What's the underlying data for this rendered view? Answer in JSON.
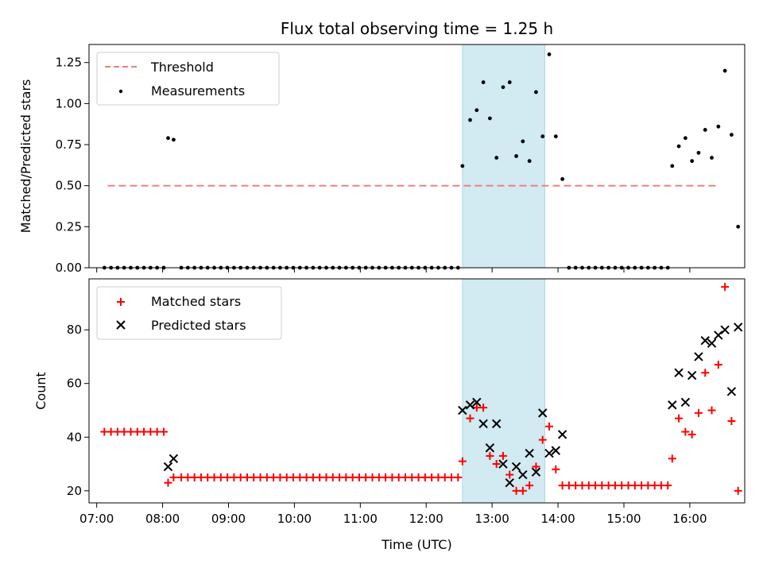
{
  "chart_data": [
    {
      "type": "scatter",
      "title": "Flux total observing time = 1.25 h",
      "xlabel": "",
      "ylabel": "Matched/Predicted stars",
      "xlim": [
        "06:53",
        "16:50"
      ],
      "ylim": [
        0,
        1.36
      ],
      "yticks": [
        "0.00",
        "0.25",
        "0.50",
        "0.75",
        "1.00",
        "1.25"
      ],
      "grid": false,
      "legend": "top-left",
      "highlight_span": [
        "12:33",
        "13:48"
      ],
      "highlight_color": "#add8e6",
      "threshold": {
        "name": "Threshold",
        "y": 0.5,
        "x_start": "07:10",
        "x_end": "16:25",
        "color": "#f08080"
      },
      "series": [
        {
          "name": "Measurements",
          "color": "#000000",
          "points": [
            [
              "07:07",
              0
            ],
            [
              "07:13",
              0
            ],
            [
              "07:19",
              0
            ],
            [
              "07:25",
              0
            ],
            [
              "07:31",
              0
            ],
            [
              "07:37",
              0
            ],
            [
              "07:43",
              0
            ],
            [
              "07:49",
              0
            ],
            [
              "07:55",
              0
            ],
            [
              "08:01",
              0
            ],
            [
              "08:05",
              0.79
            ],
            [
              "08:10",
              0.78
            ],
            [
              "08:17",
              0
            ],
            [
              "08:23",
              0
            ],
            [
              "08:29",
              0
            ],
            [
              "08:35",
              0
            ],
            [
              "08:41",
              0
            ],
            [
              "08:47",
              0
            ],
            [
              "08:53",
              0
            ],
            [
              "08:59",
              0
            ],
            [
              "09:05",
              0
            ],
            [
              "09:11",
              0
            ],
            [
              "09:17",
              0
            ],
            [
              "09:23",
              0
            ],
            [
              "09:29",
              0
            ],
            [
              "09:35",
              0
            ],
            [
              "09:41",
              0
            ],
            [
              "09:47",
              0
            ],
            [
              "09:53",
              0
            ],
            [
              "09:59",
              0
            ],
            [
              "10:05",
              0
            ],
            [
              "10:11",
              0
            ],
            [
              "10:17",
              0
            ],
            [
              "10:23",
              0
            ],
            [
              "10:29",
              0
            ],
            [
              "10:35",
              0
            ],
            [
              "10:41",
              0
            ],
            [
              "10:47",
              0
            ],
            [
              "10:53",
              0
            ],
            [
              "10:59",
              0
            ],
            [
              "11:05",
              0
            ],
            [
              "11:11",
              0
            ],
            [
              "11:17",
              0
            ],
            [
              "11:23",
              0
            ],
            [
              "11:29",
              0
            ],
            [
              "11:35",
              0
            ],
            [
              "11:41",
              0
            ],
            [
              "11:47",
              0
            ],
            [
              "11:53",
              0
            ],
            [
              "11:59",
              0
            ],
            [
              "12:05",
              0
            ],
            [
              "12:11",
              0
            ],
            [
              "12:17",
              0
            ],
            [
              "12:23",
              0
            ],
            [
              "12:29",
              0
            ],
            [
              "12:33",
              0.62
            ],
            [
              "12:40",
              0.9
            ],
            [
              "12:46",
              0.96
            ],
            [
              "12:52",
              1.13
            ],
            [
              "12:58",
              0.91
            ],
            [
              "13:04",
              0.67
            ],
            [
              "13:10",
              1.1
            ],
            [
              "13:16",
              1.13
            ],
            [
              "13:22",
              0.68
            ],
            [
              "13:28",
              0.77
            ],
            [
              "13:34",
              0.65
            ],
            [
              "13:40",
              1.07
            ],
            [
              "13:46",
              0.8
            ],
            [
              "13:52",
              1.3
            ],
            [
              "13:58",
              0.8
            ],
            [
              "14:04",
              0.54
            ],
            [
              "14:10",
              0
            ],
            [
              "14:16",
              0
            ],
            [
              "14:22",
              0
            ],
            [
              "14:28",
              0
            ],
            [
              "14:34",
              0
            ],
            [
              "14:40",
              0
            ],
            [
              "14:46",
              0
            ],
            [
              "14:52",
              0
            ],
            [
              "14:58",
              0
            ],
            [
              "15:04",
              0
            ],
            [
              "15:10",
              0
            ],
            [
              "15:16",
              0
            ],
            [
              "15:22",
              0
            ],
            [
              "15:28",
              0
            ],
            [
              "15:34",
              0
            ],
            [
              "15:40",
              0
            ],
            [
              "15:44",
              0.62
            ],
            [
              "15:50",
              0.74
            ],
            [
              "15:56",
              0.79
            ],
            [
              "16:02",
              0.65
            ],
            [
              "16:08",
              0.7
            ],
            [
              "16:14",
              0.84
            ],
            [
              "16:20",
              0.67
            ],
            [
              "16:26",
              0.86
            ],
            [
              "16:32",
              1.2
            ],
            [
              "16:38",
              0.81
            ],
            [
              "16:44",
              0.25
            ]
          ]
        }
      ]
    },
    {
      "type": "scatter",
      "title": "",
      "xlabel": "Time (UTC)",
      "ylabel": "Count",
      "xlim": [
        "06:53",
        "16:50"
      ],
      "ylim": [
        15.5,
        99
      ],
      "yticks": [
        "20",
        "40",
        "60",
        "80"
      ],
      "xticks": [
        "07:00",
        "08:00",
        "09:00",
        "10:00",
        "11:00",
        "12:00",
        "13:00",
        "14:00",
        "15:00",
        "16:00"
      ],
      "grid": false,
      "legend": "top-left",
      "highlight_span": [
        "12:33",
        "13:48"
      ],
      "highlight_color": "#add8e6",
      "series": [
        {
          "name": "Matched stars",
          "marker": "plus",
          "color": "#ff0000",
          "points": [
            [
              "07:07",
              42
            ],
            [
              "07:13",
              42
            ],
            [
              "07:19",
              42
            ],
            [
              "07:25",
              42
            ],
            [
              "07:31",
              42
            ],
            [
              "07:37",
              42
            ],
            [
              "07:43",
              42
            ],
            [
              "07:49",
              42
            ],
            [
              "07:55",
              42
            ],
            [
              "08:01",
              42
            ],
            [
              "08:05",
              23
            ],
            [
              "08:10",
              25
            ],
            [
              "08:17",
              25
            ],
            [
              "08:23",
              25
            ],
            [
              "08:29",
              25
            ],
            [
              "08:35",
              25
            ],
            [
              "08:41",
              25
            ],
            [
              "08:47",
              25
            ],
            [
              "08:53",
              25
            ],
            [
              "08:59",
              25
            ],
            [
              "09:05",
              25
            ],
            [
              "09:11",
              25
            ],
            [
              "09:17",
              25
            ],
            [
              "09:23",
              25
            ],
            [
              "09:29",
              25
            ],
            [
              "09:35",
              25
            ],
            [
              "09:41",
              25
            ],
            [
              "09:47",
              25
            ],
            [
              "09:53",
              25
            ],
            [
              "09:59",
              25
            ],
            [
              "10:05",
              25
            ],
            [
              "10:11",
              25
            ],
            [
              "10:17",
              25
            ],
            [
              "10:23",
              25
            ],
            [
              "10:29",
              25
            ],
            [
              "10:35",
              25
            ],
            [
              "10:41",
              25
            ],
            [
              "10:47",
              25
            ],
            [
              "10:53",
              25
            ],
            [
              "10:59",
              25
            ],
            [
              "11:05",
              25
            ],
            [
              "11:11",
              25
            ],
            [
              "11:17",
              25
            ],
            [
              "11:23",
              25
            ],
            [
              "11:29",
              25
            ],
            [
              "11:35",
              25
            ],
            [
              "11:41",
              25
            ],
            [
              "11:47",
              25
            ],
            [
              "11:53",
              25
            ],
            [
              "11:59",
              25
            ],
            [
              "12:05",
              25
            ],
            [
              "12:11",
              25
            ],
            [
              "12:17",
              25
            ],
            [
              "12:23",
              25
            ],
            [
              "12:29",
              25
            ],
            [
              "12:33",
              31
            ],
            [
              "12:40",
              47
            ],
            [
              "12:46",
              51
            ],
            [
              "12:52",
              51
            ],
            [
              "12:58",
              33
            ],
            [
              "13:04",
              30
            ],
            [
              "13:10",
              33
            ],
            [
              "13:16",
              26
            ],
            [
              "13:22",
              20
            ],
            [
              "13:28",
              20
            ],
            [
              "13:34",
              22
            ],
            [
              "13:40",
              29
            ],
            [
              "13:46",
              39
            ],
            [
              "13:52",
              44
            ],
            [
              "13:58",
              28
            ],
            [
              "14:04",
              22
            ],
            [
              "14:10",
              22
            ],
            [
              "14:16",
              22
            ],
            [
              "14:22",
              22
            ],
            [
              "14:28",
              22
            ],
            [
              "14:34",
              22
            ],
            [
              "14:40",
              22
            ],
            [
              "14:46",
              22
            ],
            [
              "14:52",
              22
            ],
            [
              "14:58",
              22
            ],
            [
              "15:04",
              22
            ],
            [
              "15:10",
              22
            ],
            [
              "15:16",
              22
            ],
            [
              "15:22",
              22
            ],
            [
              "15:28",
              22
            ],
            [
              "15:34",
              22
            ],
            [
              "15:40",
              22
            ],
            [
              "15:44",
              32
            ],
            [
              "15:50",
              47
            ],
            [
              "15:56",
              42
            ],
            [
              "16:02",
              41
            ],
            [
              "16:08",
              49
            ],
            [
              "16:14",
              64
            ],
            [
              "16:20",
              50
            ],
            [
              "16:26",
              67
            ],
            [
              "16:32",
              96
            ],
            [
              "16:38",
              46
            ],
            [
              "16:44",
              20
            ]
          ]
        },
        {
          "name": "Predicted stars",
          "marker": "x",
          "color": "#000000",
          "points": [
            [
              "08:05",
              29
            ],
            [
              "08:10",
              32
            ],
            [
              "12:33",
              50
            ],
            [
              "12:40",
              52
            ],
            [
              "12:46",
              53
            ],
            [
              "12:52",
              45
            ],
            [
              "12:58",
              36
            ],
            [
              "13:04",
              45
            ],
            [
              "13:10",
              30
            ],
            [
              "13:16",
              23
            ],
            [
              "13:22",
              29
            ],
            [
              "13:28",
              26
            ],
            [
              "13:34",
              34
            ],
            [
              "13:40",
              27
            ],
            [
              "13:46",
              49
            ],
            [
              "13:52",
              34
            ],
            [
              "13:58",
              35
            ],
            [
              "14:04",
              41
            ],
            [
              "15:44",
              52
            ],
            [
              "15:50",
              64
            ],
            [
              "15:56",
              53
            ],
            [
              "16:02",
              63
            ],
            [
              "16:08",
              70
            ],
            [
              "16:14",
              76
            ],
            [
              "16:20",
              75
            ],
            [
              "16:26",
              78
            ],
            [
              "16:32",
              80
            ],
            [
              "16:38",
              57
            ],
            [
              "16:44",
              81
            ]
          ]
        }
      ]
    }
  ]
}
